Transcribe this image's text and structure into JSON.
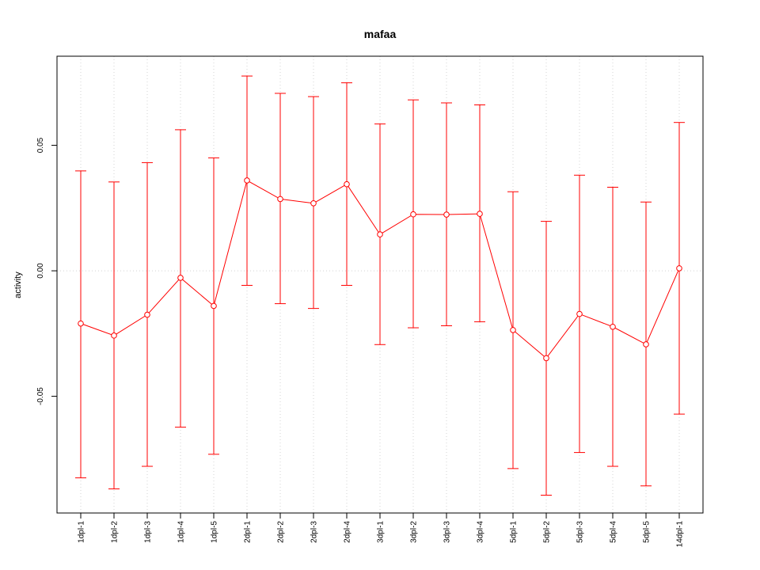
{
  "chart_data": {
    "type": "line",
    "title": "mafaa",
    "xlabel": "",
    "ylabel": "activity",
    "categories": [
      "1dpl-1",
      "1dpl-2",
      "1dpl-3",
      "1dpl-4",
      "1dpl-5",
      "2dpl-1",
      "2dpl-2",
      "2dpl-3",
      "2dpl-4",
      "3dpl-1",
      "3dpl-2",
      "3dpl-3",
      "3dpl-4",
      "5dpl-1",
      "5dpl-2",
      "5dpl-3",
      "5dpl-4",
      "5dpl-5",
      "14dpl-1"
    ],
    "series": [
      {
        "values": [
          -0.021,
          -0.0258,
          -0.0175,
          -0.0028,
          -0.014,
          0.036,
          0.0286,
          0.0269,
          0.0345,
          0.0145,
          0.0225,
          0.0224,
          0.0227,
          -0.0236,
          -0.0348,
          -0.0172,
          -0.0223,
          -0.0293,
          0.001
        ],
        "upper": [
          0.0398,
          0.0354,
          0.0431,
          0.0562,
          0.045,
          0.0776,
          0.0707,
          0.0694,
          0.0749,
          0.0585,
          0.0681,
          0.0669,
          0.0661,
          0.0315,
          0.0197,
          0.0381,
          0.0333,
          0.0274,
          0.0591
        ],
        "lower": [
          -0.0825,
          -0.0869,
          -0.0779,
          -0.0623,
          -0.0731,
          -0.0058,
          -0.0131,
          -0.015,
          -0.0058,
          -0.0294,
          -0.0227,
          -0.0219,
          -0.0203,
          -0.0788,
          -0.0894,
          -0.0724,
          -0.0779,
          -0.0857,
          -0.0571
        ],
        "color": "#ff0000"
      }
    ],
    "y_ticks": [
      "-0.05",
      "0.00",
      "0.05"
    ],
    "y_tick_values": [
      -0.05,
      0.0,
      0.05
    ],
    "ylim": [
      -0.0965,
      0.0855
    ],
    "grid": true,
    "gridline_color": "#d3d3d3",
    "legend": "none"
  }
}
